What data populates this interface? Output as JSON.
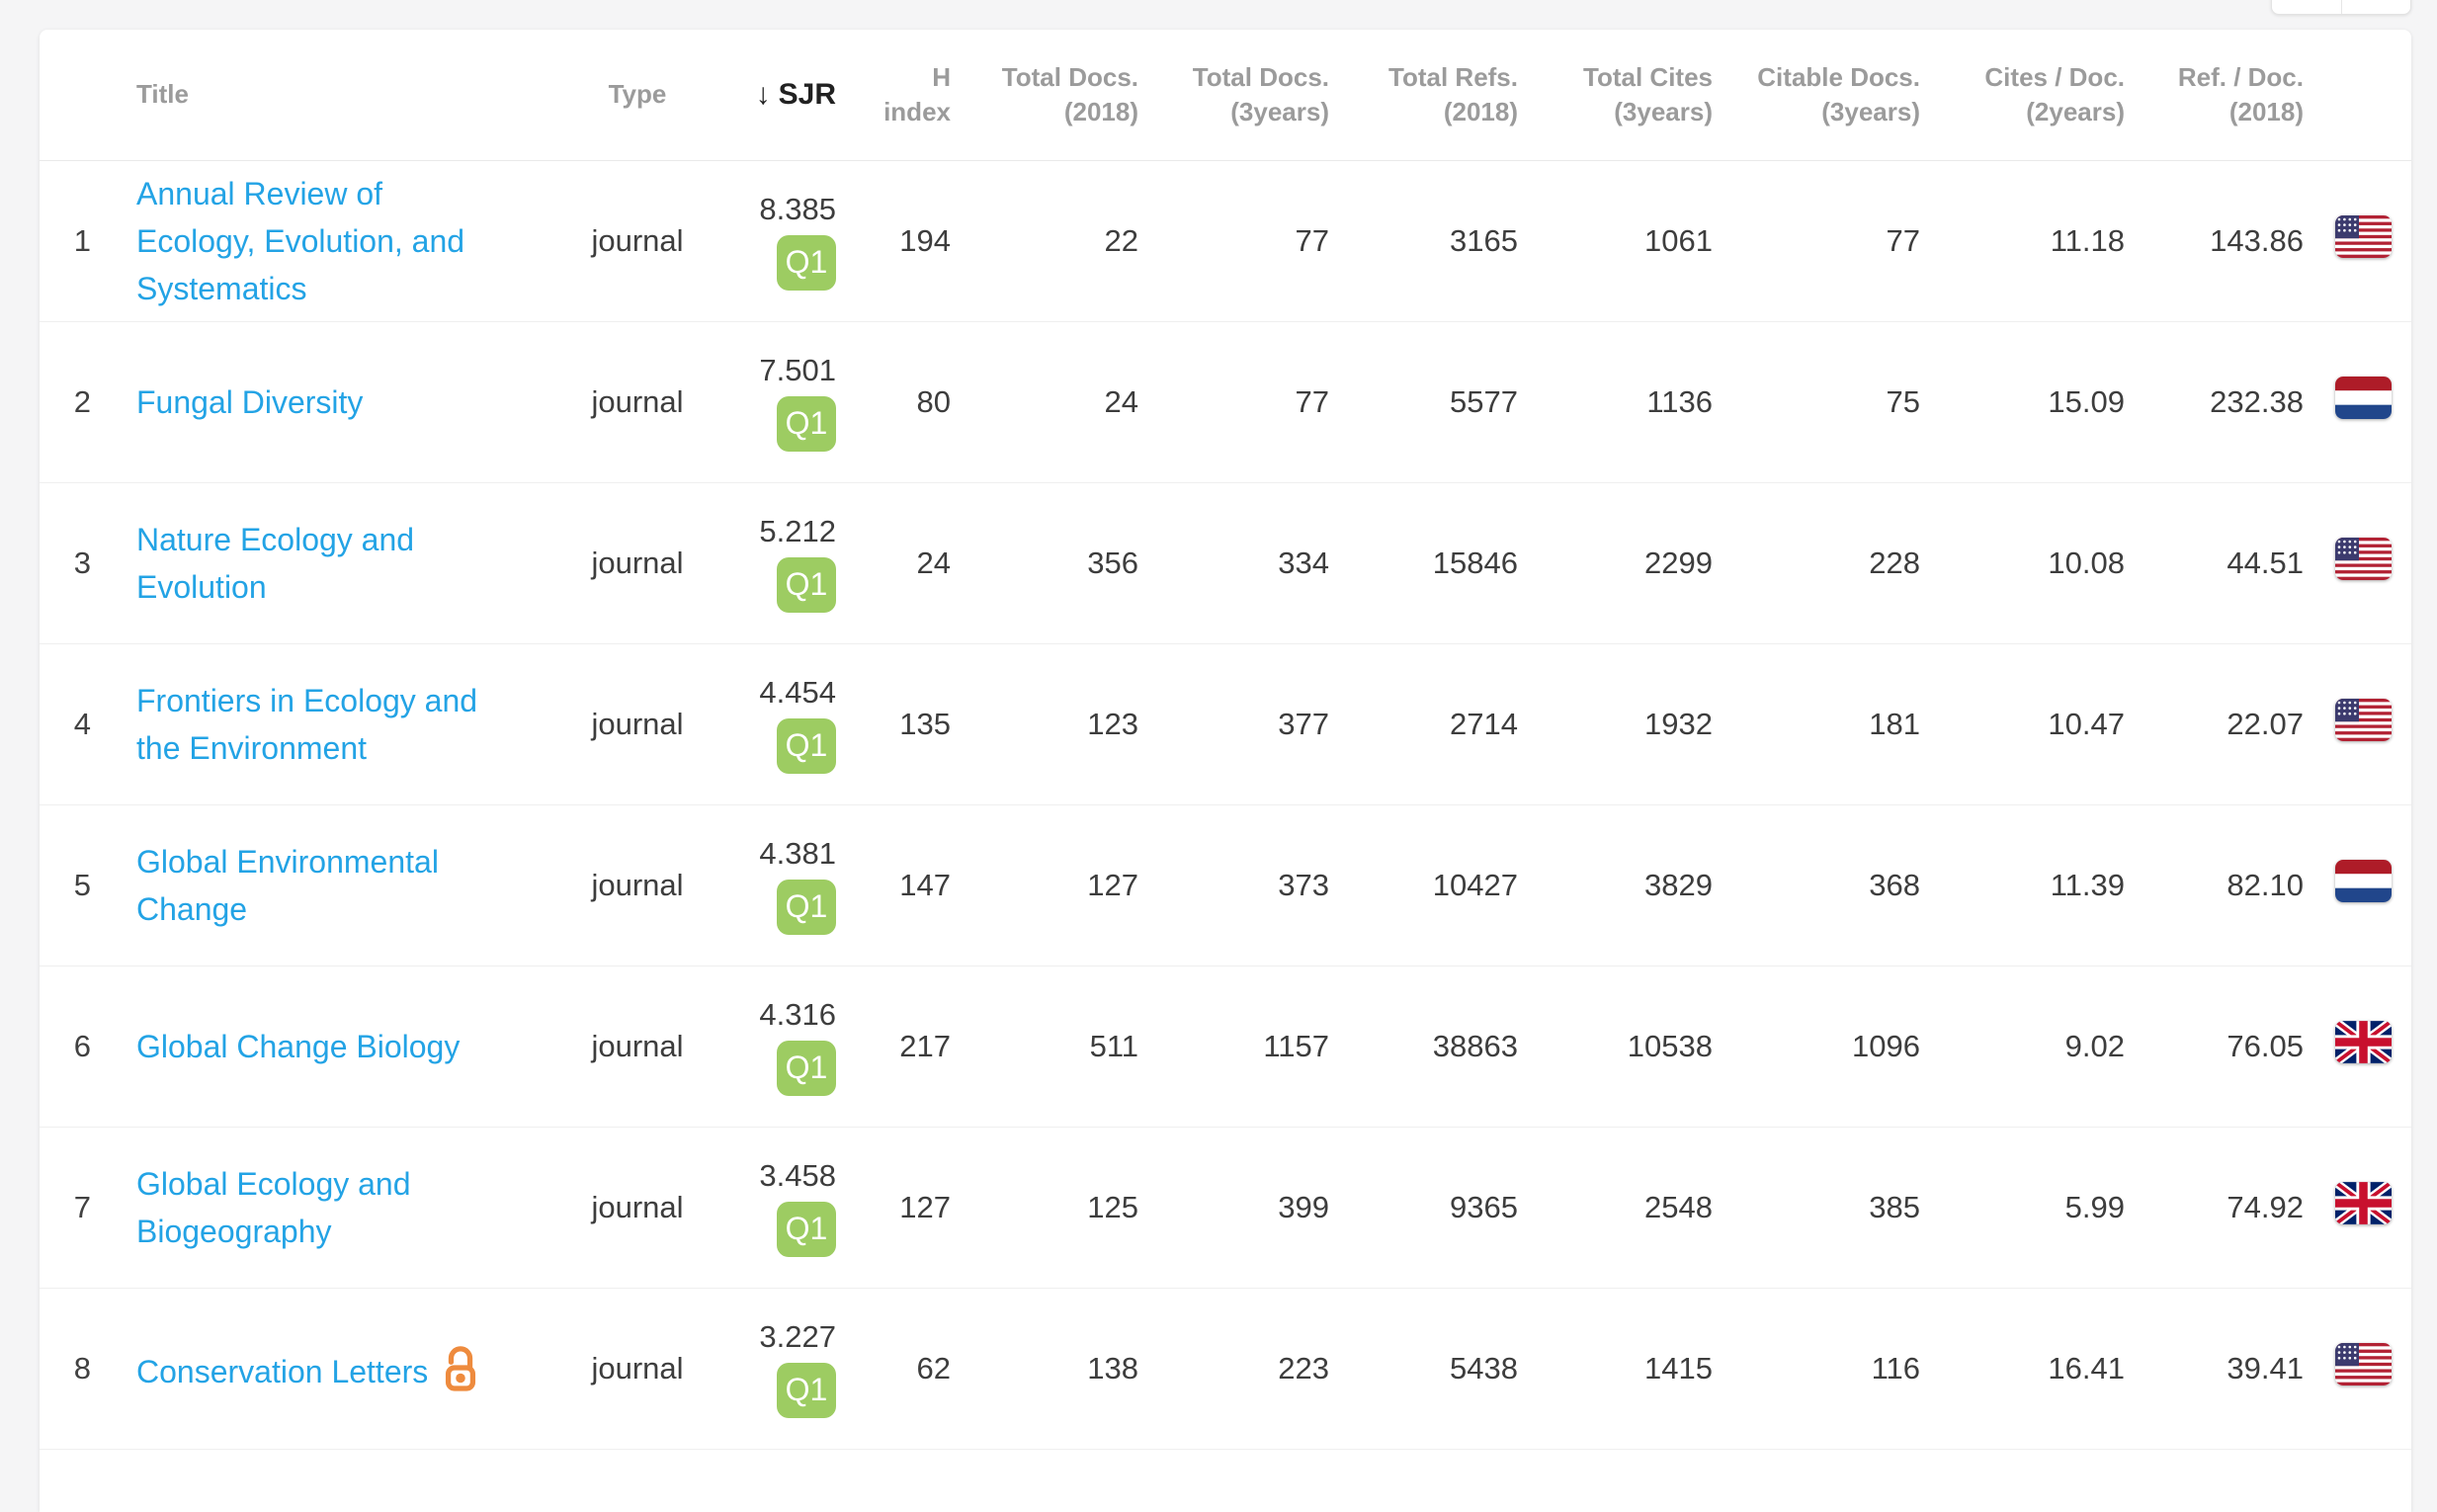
{
  "colors": {
    "link_blue": "#23a3e5",
    "quartile_green": "#9dcc62",
    "open_access_orange": "#EE8B3E",
    "header_gray": "#9b9b9b",
    "body_text": "#3d3d3d"
  },
  "table": {
    "sort_icon": "↓",
    "columns": [
      {
        "id": "title",
        "label": "Title",
        "align": "left",
        "sorted": false
      },
      {
        "id": "type",
        "label": "Type",
        "align": "center",
        "sorted": false
      },
      {
        "id": "sjr",
        "label": "SJR",
        "align": "right",
        "sorted": true
      },
      {
        "id": "h_index",
        "label": "H\nindex",
        "align": "right",
        "sorted": false
      },
      {
        "id": "docs_2018",
        "label": "Total Docs.\n(2018)",
        "align": "right",
        "sorted": false
      },
      {
        "id": "docs_3y",
        "label": "Total Docs.\n(3years)",
        "align": "right",
        "sorted": false
      },
      {
        "id": "refs_2018",
        "label": "Total Refs.\n(2018)",
        "align": "right",
        "sorted": false
      },
      {
        "id": "cites_3y",
        "label": "Total Cites\n(3years)",
        "align": "right",
        "sorted": false
      },
      {
        "id": "citable_3y",
        "label": "Citable Docs.\n(3years)",
        "align": "right",
        "sorted": false
      },
      {
        "id": "cites_doc",
        "label": "Cites / Doc.\n(2years)",
        "align": "right",
        "sorted": false
      },
      {
        "id": "refs_doc",
        "label": "Ref. / Doc.\n(2018)",
        "align": "right",
        "sorted": false
      }
    ],
    "rows": [
      {
        "rank": "1",
        "title": "Annual Review of Ecology, Evolution, and Systematics",
        "open_access": false,
        "type": "journal",
        "sjr": "8.385",
        "quartile": "Q1",
        "h_index": "194",
        "docs_2018": "22",
        "docs_3y": "77",
        "refs_2018": "3165",
        "cites_3y": "1061",
        "citable_3y": "77",
        "cites_doc": "11.18",
        "refs_doc": "143.86",
        "country": "US"
      },
      {
        "rank": "2",
        "title": "Fungal Diversity",
        "open_access": false,
        "type": "journal",
        "sjr": "7.501",
        "quartile": "Q1",
        "h_index": "80",
        "docs_2018": "24",
        "docs_3y": "77",
        "refs_2018": "5577",
        "cites_3y": "1136",
        "citable_3y": "75",
        "cites_doc": "15.09",
        "refs_doc": "232.38",
        "country": "NL"
      },
      {
        "rank": "3",
        "title": "Nature Ecology and Evolution",
        "open_access": false,
        "type": "journal",
        "sjr": "5.212",
        "quartile": "Q1",
        "h_index": "24",
        "docs_2018": "356",
        "docs_3y": "334",
        "refs_2018": "15846",
        "cites_3y": "2299",
        "citable_3y": "228",
        "cites_doc": "10.08",
        "refs_doc": "44.51",
        "country": "US"
      },
      {
        "rank": "4",
        "title": "Frontiers in Ecology and the Environment",
        "open_access": false,
        "type": "journal",
        "sjr": "4.454",
        "quartile": "Q1",
        "h_index": "135",
        "docs_2018": "123",
        "docs_3y": "377",
        "refs_2018": "2714",
        "cites_3y": "1932",
        "citable_3y": "181",
        "cites_doc": "10.47",
        "refs_doc": "22.07",
        "country": "US"
      },
      {
        "rank": "5",
        "title": "Global Environmental Change",
        "open_access": false,
        "type": "journal",
        "sjr": "4.381",
        "quartile": "Q1",
        "h_index": "147",
        "docs_2018": "127",
        "docs_3y": "373",
        "refs_2018": "10427",
        "cites_3y": "3829",
        "citable_3y": "368",
        "cites_doc": "11.39",
        "refs_doc": "82.10",
        "country": "NL"
      },
      {
        "rank": "6",
        "title": "Global Change Biology",
        "open_access": false,
        "type": "journal",
        "sjr": "4.316",
        "quartile": "Q1",
        "h_index": "217",
        "docs_2018": "511",
        "docs_3y": "1157",
        "refs_2018": "38863",
        "cites_3y": "10538",
        "citable_3y": "1096",
        "cites_doc": "9.02",
        "refs_doc": "76.05",
        "country": "GB"
      },
      {
        "rank": "7",
        "title": "Global Ecology and Biogeography",
        "open_access": false,
        "type": "journal",
        "sjr": "3.458",
        "quartile": "Q1",
        "h_index": "127",
        "docs_2018": "125",
        "docs_3y": "399",
        "refs_2018": "9365",
        "cites_3y": "2548",
        "citable_3y": "385",
        "cites_doc": "5.99",
        "refs_doc": "74.92",
        "country": "GB"
      },
      {
        "rank": "8",
        "title": "Conservation Letters",
        "open_access": true,
        "type": "journal",
        "sjr": "3.227",
        "quartile": "Q1",
        "h_index": "62",
        "docs_2018": "138",
        "docs_3y": "223",
        "refs_2018": "5438",
        "cites_3y": "1415",
        "citable_3y": "116",
        "cites_doc": "16.41",
        "refs_doc": "39.41",
        "country": "US"
      }
    ]
  }
}
